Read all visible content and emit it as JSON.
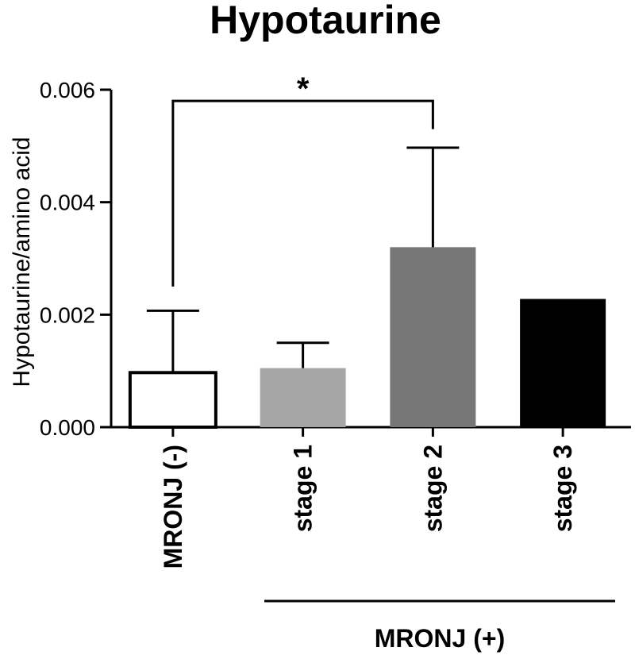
{
  "chart_data": {
    "type": "bar",
    "title": "Hypotaurine",
    "ylabel": "Hypotaurine/amino acid",
    "xlabel": "",
    "ylim": [
      0,
      0.006
    ],
    "yticks": [
      "0.000",
      "0.002",
      "0.004",
      "0.006"
    ],
    "categories": [
      "MRONJ (-)",
      "stage 1",
      "stage 2",
      "stage 3"
    ],
    "values": [
      0.00097,
      0.00105,
      0.0032,
      0.00228
    ],
    "error_upper": [
      0.00207,
      0.0015,
      0.00497,
      null
    ],
    "bar_colors": [
      "#ffffff",
      "#a6a6a6",
      "#777777",
      "#000000"
    ],
    "group_label": "MRONJ (+)",
    "significance": {
      "between": [
        "MRONJ (-)",
        "stage 2"
      ],
      "label": "*"
    }
  }
}
